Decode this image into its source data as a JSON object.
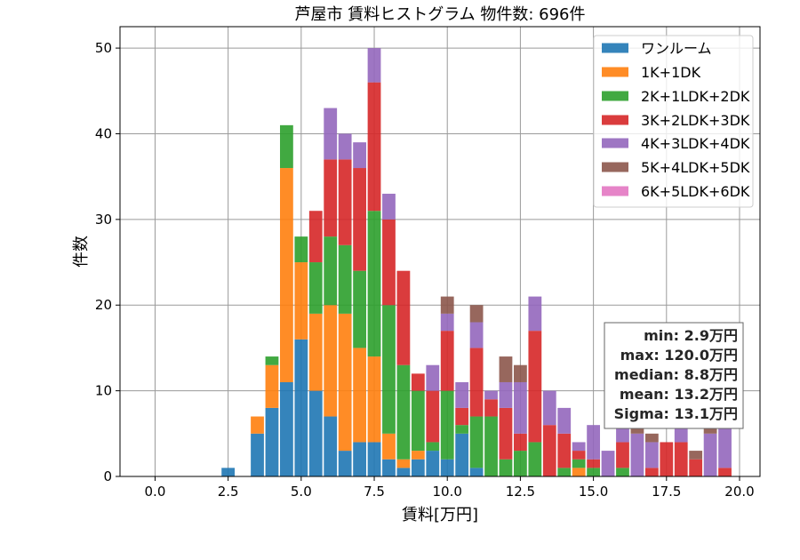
{
  "chart_data": {
    "type": "bar",
    "stacked": true,
    "title": "芦屋市 賃料ヒストグラム 物件数: 696件",
    "xlabel": "賃料[万円]",
    "ylabel": "件数",
    "xlim": [
      -1.2,
      20.7
    ],
    "ylim": [
      0,
      52.5
    ],
    "xticks": [
      "0.0",
      "2.5",
      "5.0",
      "7.5",
      "10.0",
      "12.5",
      "15.0",
      "17.5",
      "20.0"
    ],
    "yticks": [
      "0",
      "10",
      "20",
      "30",
      "40",
      "50"
    ],
    "grid": true,
    "legend_position": "upper right",
    "x": [
      2.5,
      3.0,
      3.5,
      4.0,
      4.5,
      5.0,
      5.5,
      6.0,
      6.5,
      7.0,
      7.5,
      8.0,
      8.5,
      9.0,
      9.5,
      10.0,
      10.5,
      11.0,
      11.5,
      12.0,
      12.5,
      13.0,
      13.5,
      14.0,
      14.5,
      15.0,
      15.5,
      16.0,
      16.5,
      17.0,
      17.5,
      18.0,
      18.5,
      19.0,
      19.5
    ],
    "series": [
      {
        "name": "ワンルーム",
        "color": "#1f77b4",
        "values": [
          1,
          0,
          5,
          8,
          11,
          16,
          10,
          7,
          3,
          4,
          4,
          2,
          1,
          2,
          3,
          2,
          5,
          1,
          0,
          0,
          0,
          0,
          0,
          0,
          0,
          0,
          0,
          0,
          0,
          0,
          0,
          0,
          0,
          0,
          0
        ]
      },
      {
        "name": "1K+1DK",
        "color": "#ff7f0e",
        "values": [
          0,
          0,
          2,
          5,
          25,
          9,
          9,
          13,
          16,
          11,
          10,
          3,
          1,
          1,
          0,
          0,
          0,
          0,
          0,
          0,
          0,
          0,
          0,
          0,
          1,
          0,
          0,
          0,
          0,
          0,
          0,
          0,
          0,
          0,
          0
        ]
      },
      {
        "name": "2K+1LDK+2DK",
        "color": "#2ca02c",
        "values": [
          0,
          0,
          0,
          1,
          5,
          3,
          6,
          8,
          8,
          9,
          17,
          15,
          11,
          7,
          1,
          8,
          1,
          6,
          7,
          2,
          3,
          4,
          0,
          1,
          1,
          1,
          0,
          1,
          0,
          0,
          0,
          0,
          0,
          0,
          0
        ]
      },
      {
        "name": "3K+2LDK+3DK",
        "color": "#d62728",
        "values": [
          0,
          0,
          0,
          0,
          0,
          0,
          6,
          9,
          10,
          12,
          15,
          10,
          11,
          2,
          6,
          7,
          2,
          8,
          2,
          6,
          2,
          13,
          6,
          4,
          1,
          1,
          0,
          3,
          0,
          1,
          4,
          4,
          2,
          0,
          1
        ]
      },
      {
        "name": "4K+3LDK+4DK",
        "color": "#9467bd",
        "values": [
          0,
          0,
          0,
          0,
          0,
          0,
          0,
          6,
          3,
          3,
          4,
          3,
          0,
          0,
          3,
          2,
          3,
          3,
          1,
          3,
          6,
          4,
          4,
          3,
          1,
          4,
          3,
          3,
          5,
          3,
          0,
          3,
          0,
          5,
          5
        ]
      },
      {
        "name": "5K+4LDK+5DK",
        "color": "#8c564b",
        "values": [
          0,
          0,
          0,
          0,
          0,
          0,
          0,
          0,
          0,
          0,
          0,
          0,
          0,
          0,
          0,
          2,
          0,
          2,
          0,
          3,
          2,
          0,
          0,
          0,
          0,
          0,
          0,
          0,
          2,
          1,
          0,
          0,
          1,
          1,
          0
        ]
      },
      {
        "name": "6K+5LDK+6DK",
        "color": "#e377c2",
        "values": [
          0,
          0,
          0,
          0,
          0,
          0,
          0,
          0,
          0,
          0,
          0,
          0,
          0,
          0,
          0,
          0,
          0,
          0,
          0,
          0,
          0,
          0,
          0,
          0,
          0,
          0,
          0,
          0,
          0,
          0,
          0,
          0,
          0,
          0,
          0
        ]
      }
    ],
    "annotations": [
      "min: 2.9万円",
      "max: 120.0万円",
      "median: 8.8万円",
      "mean: 13.2万円",
      "Sigma: 13.1万円"
    ]
  }
}
